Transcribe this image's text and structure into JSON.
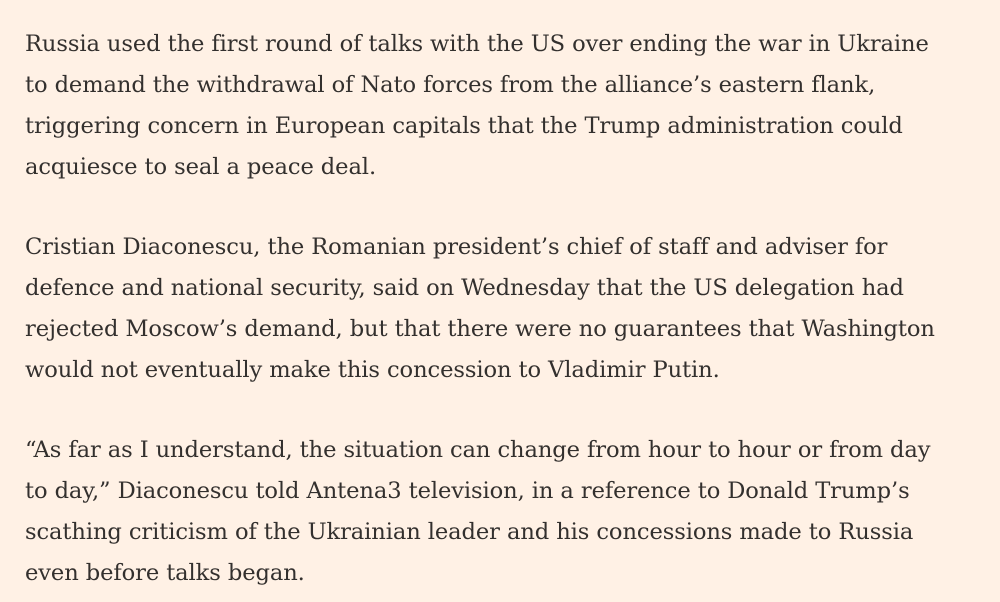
{
  "article": {
    "paragraphs": [
      {
        "lines": [
          "Russia used the first round of talks with the US over ending the war in Ukraine",
          "to demand the withdrawal of Nato forces from the alliance’s eastern flank,",
          "triggering concern in European capitals that the Trump administration could",
          "acquiesce to seal a peace deal."
        ]
      },
      {
        "lines": [
          "Cristian Diaconescu, the Romanian president’s chief of staff and adviser for",
          "defence and national security, said on Wednesday that the US delegation had",
          "rejected Moscow’s demand, but that there were no guarantees that Washington",
          "would not eventually make this concession to Vladimir Putin."
        ]
      },
      {
        "lines": [
          "“As far as I understand, the situation can change from hour to hour or from day",
          "to day,” Diaconescu told Antena3 television, in a reference to Donald Trump’s",
          "scathing criticism of the Ukrainian leader and his concessions made to Russia",
          "even before talks began."
        ]
      }
    ]
  }
}
